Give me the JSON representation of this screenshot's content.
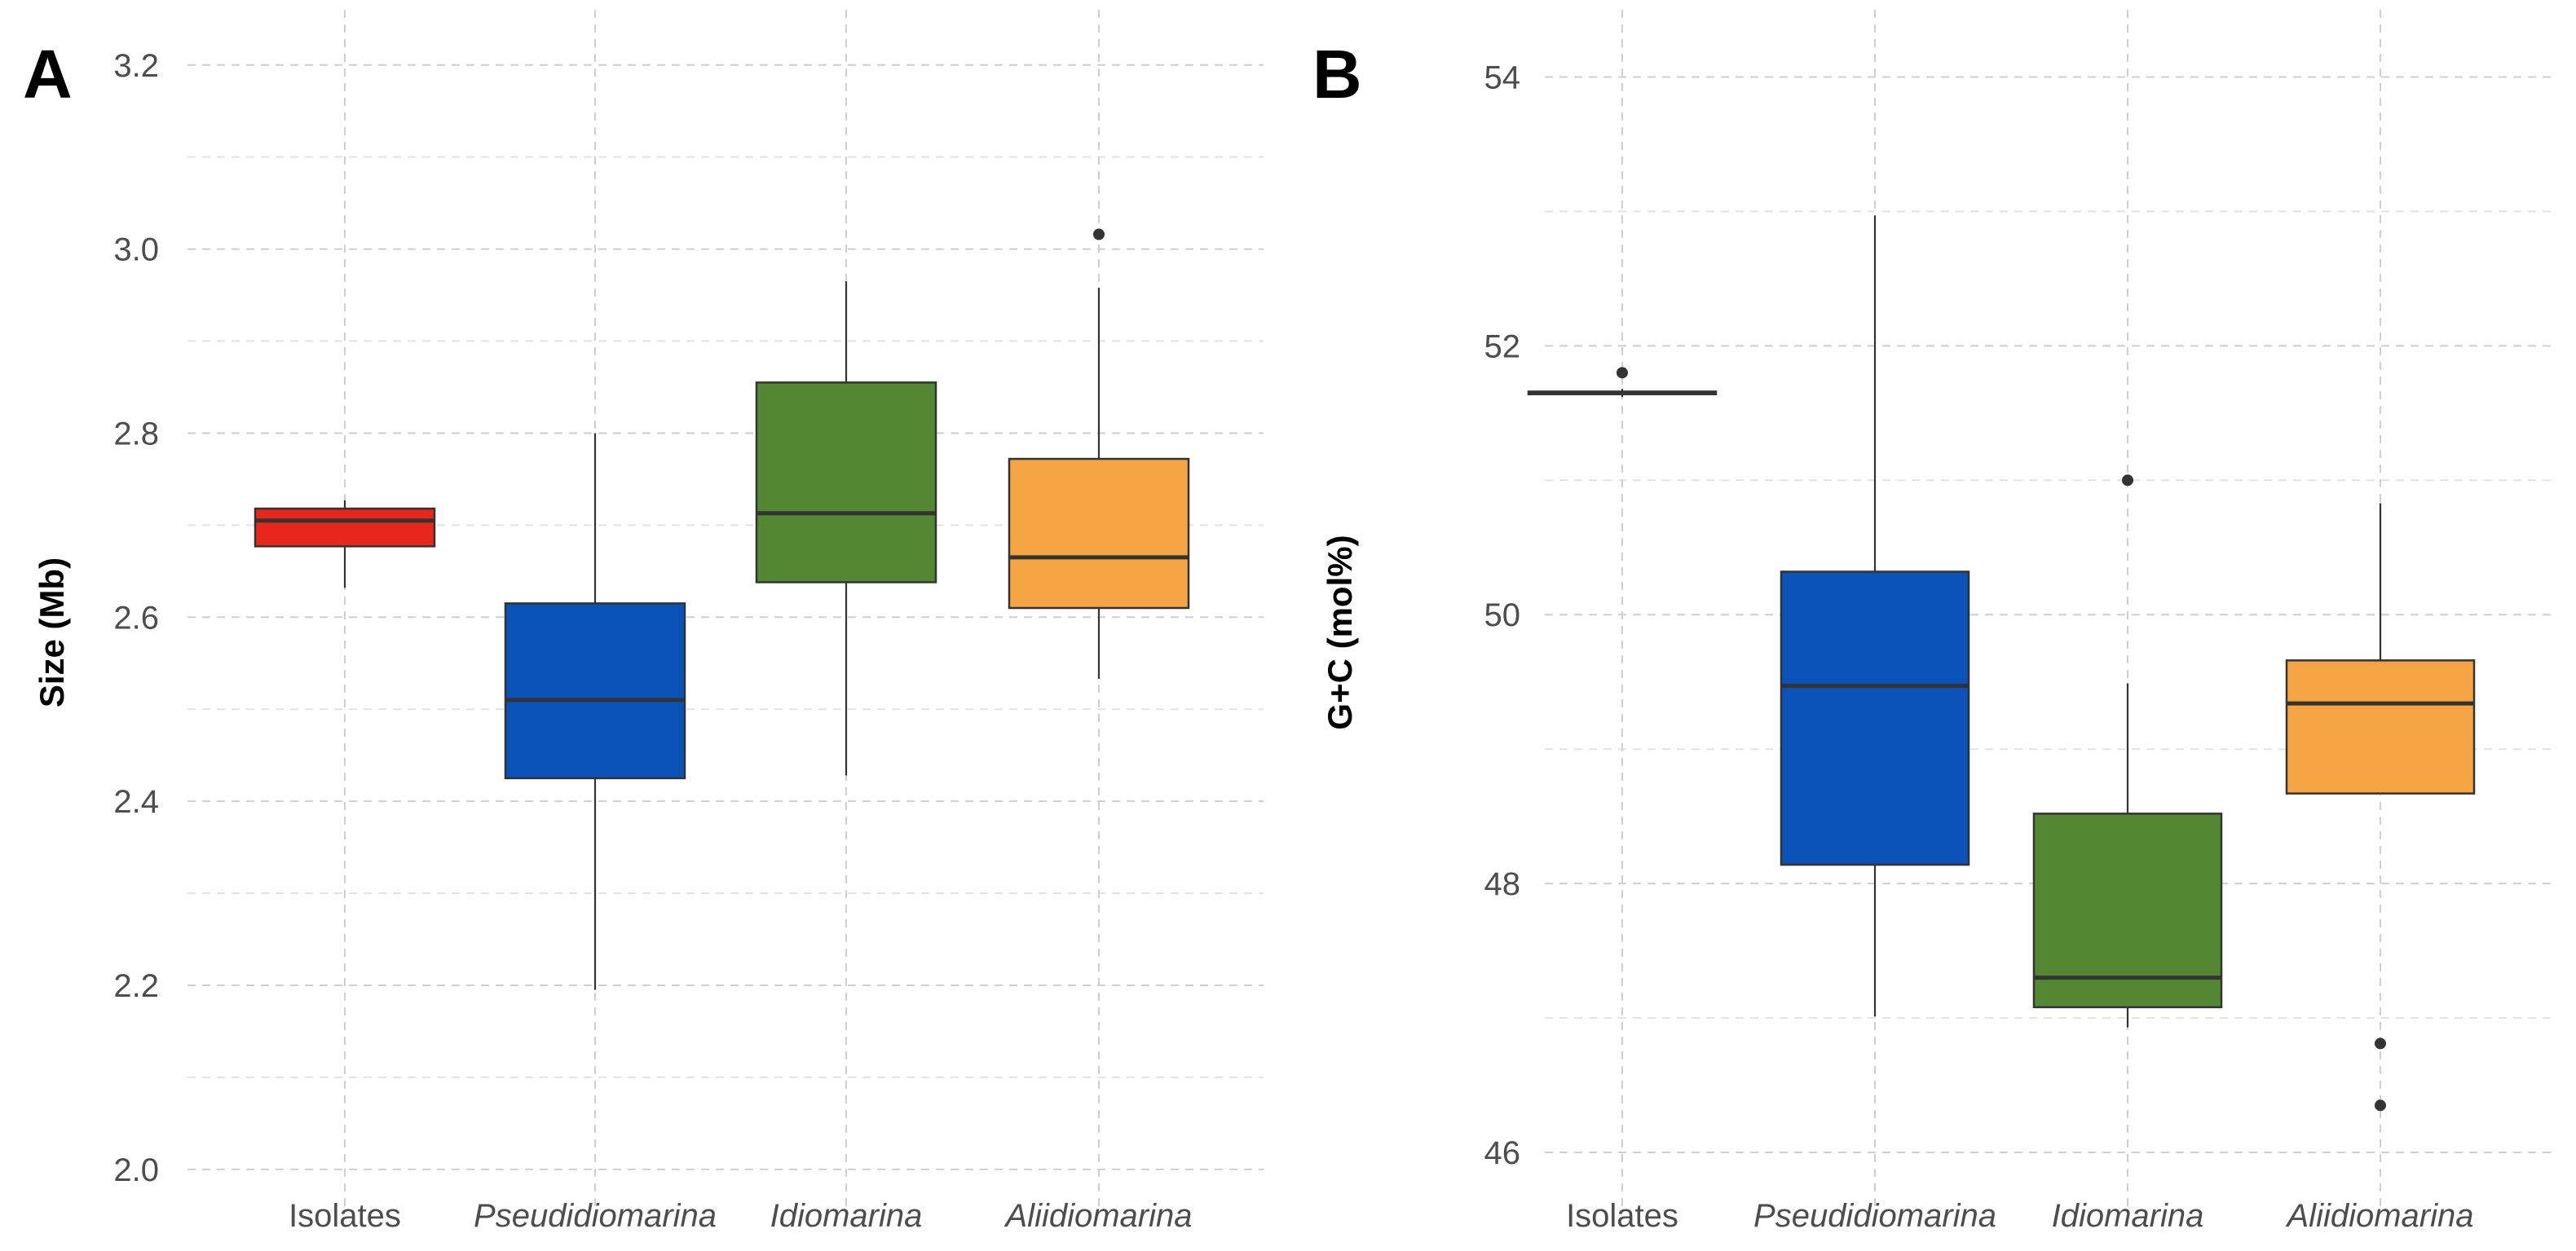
{
  "chart_data": [
    {
      "panel": "A",
      "type": "box",
      "ylabel": "Size (Mb)",
      "xlabel": "",
      "ylim": [
        1.96,
        3.26
      ],
      "yticks": [
        "2.0",
        "2.2",
        "2.4",
        "2.6",
        "2.8",
        "3.0",
        "3.2"
      ],
      "grid": true,
      "categories": [
        {
          "label": "Isolates",
          "italic": false,
          "color": "#e8261c",
          "q1": 2.677,
          "median": 2.705,
          "q3": 2.718,
          "whisker_low": 2.632,
          "whisker_high": 2.727,
          "outliers": []
        },
        {
          "label": "Pseudidiomarina",
          "italic": true,
          "color": "#0b52b8",
          "q1": 2.425,
          "median": 2.51,
          "q3": 2.615,
          "whisker_low": 2.195,
          "whisker_high": 2.8,
          "outliers": []
        },
        {
          "label": "Idiomarina",
          "italic": true,
          "color": "#538732",
          "q1": 2.638,
          "median": 2.713,
          "q3": 2.855,
          "whisker_low": 2.428,
          "whisker_high": 2.965,
          "outliers": []
        },
        {
          "label": "Aliidiomarina",
          "italic": true,
          "color": "#f4a443",
          "q1": 2.61,
          "median": 2.665,
          "q3": 2.772,
          "whisker_low": 2.533,
          "whisker_high": 2.958,
          "outliers": [
            3.016
          ]
        }
      ]
    },
    {
      "panel": "B",
      "type": "box",
      "ylabel": "G+C (mol%)",
      "xlabel": "",
      "ylim": [
        45.6,
        54.5
      ],
      "yticks": [
        "46",
        "48",
        "50",
        "52",
        "54"
      ],
      "grid": true,
      "categories": [
        {
          "label": "Isolates",
          "italic": false,
          "color": "#e8261c",
          "q1": 51.64,
          "median": 51.65,
          "q3": 51.66,
          "whisker_low": 51.62,
          "whisker_high": 51.68,
          "outliers": [
            51.8
          ]
        },
        {
          "label": "Pseudidiomarina",
          "italic": true,
          "color": "#0b52b8",
          "q1": 48.14,
          "median": 49.47,
          "q3": 50.32,
          "whisker_low": 47.01,
          "whisker_high": 52.97,
          "outliers": []
        },
        {
          "label": "Idiomarina",
          "italic": true,
          "color": "#538732",
          "q1": 47.08,
          "median": 47.3,
          "q3": 48.52,
          "whisker_low": 46.93,
          "whisker_high": 49.49,
          "outliers": [
            51.0
          ]
        },
        {
          "label": "Aliidiomarina",
          "italic": true,
          "color": "#f4a443",
          "q1": 48.67,
          "median": 49.34,
          "q3": 49.66,
          "whisker_low": 48.67,
          "whisker_high": 50.83,
          "outliers": [
            46.81,
            46.35
          ]
        }
      ]
    }
  ]
}
